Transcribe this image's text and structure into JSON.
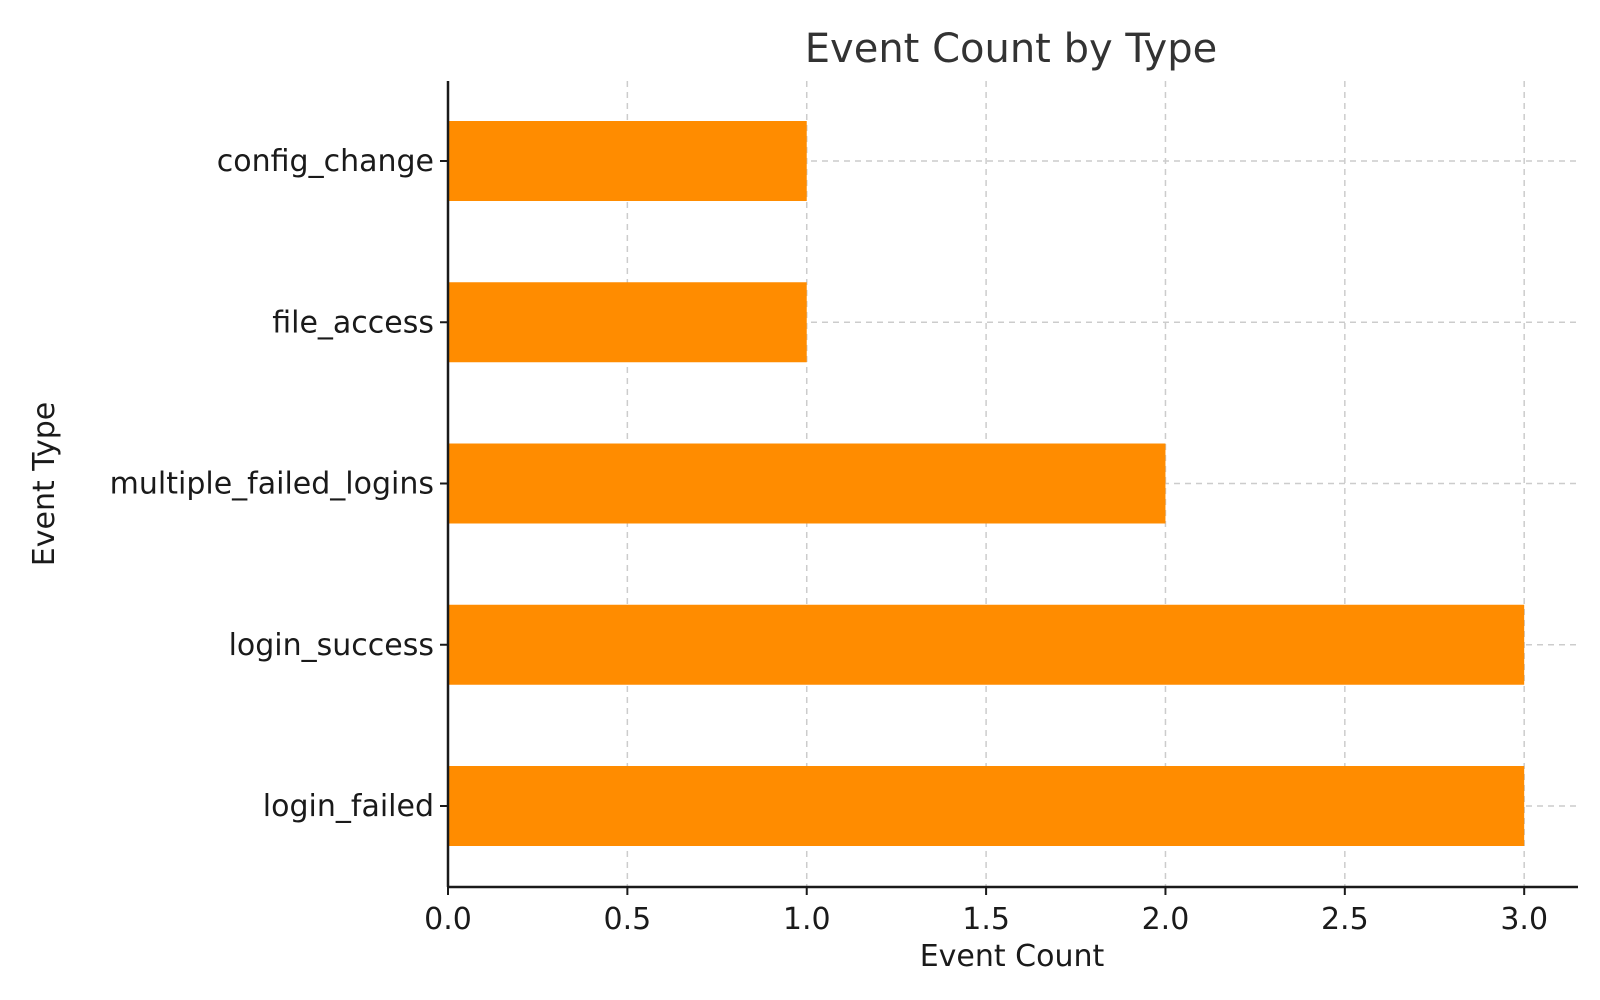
{
  "chart_data": {
    "type": "bar",
    "orientation": "horizontal",
    "title": "Event Count by Type",
    "xlabel": "Event Count",
    "ylabel": "Event Type",
    "categories": [
      "login_failed",
      "login_success",
      "multiple_failed_logins",
      "file_access",
      "config_change"
    ],
    "values": [
      3,
      3,
      2,
      1,
      1
    ],
    "xlim": [
      0,
      3.15
    ],
    "xticks": [
      0.0,
      0.5,
      1.0,
      1.5,
      2.0,
      2.5,
      3.0
    ],
    "xtick_labels": [
      "0.0",
      "0.5",
      "1.0",
      "1.5",
      "2.0",
      "2.5",
      "3.0"
    ],
    "grid": true,
    "bar_color": "#ff8c00"
  }
}
